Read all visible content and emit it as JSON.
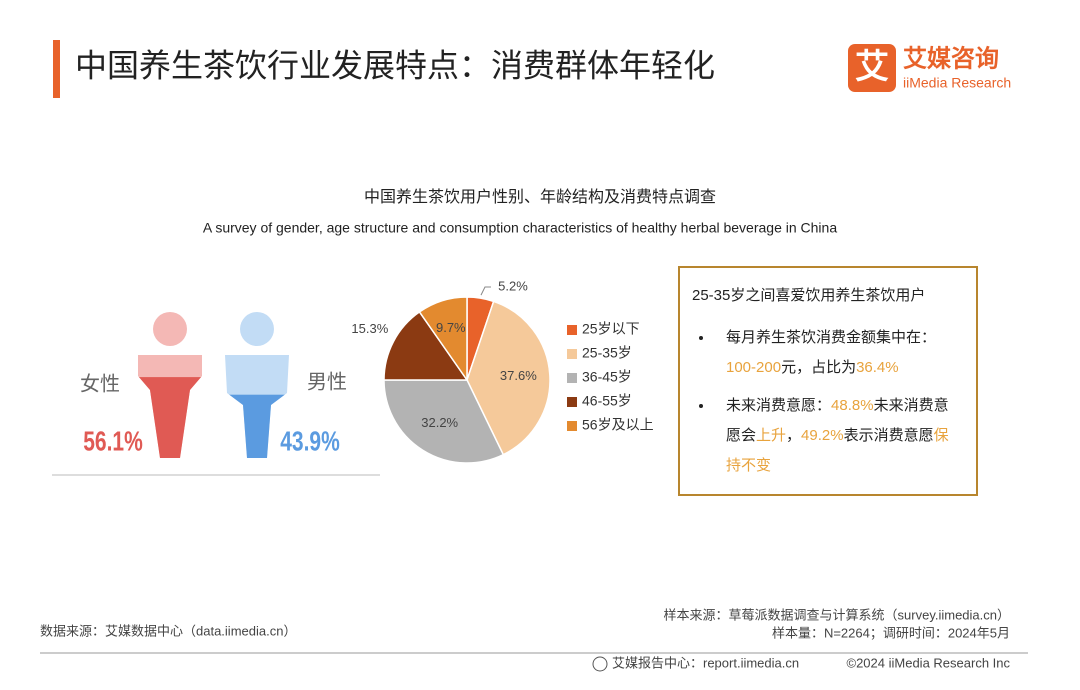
{
  "header": {
    "title": "中国养生茶饮行业发展特点：消费群体年轻化",
    "logo_icon": "艾",
    "logo_name": "艾媒咨询",
    "logo_sub": "iiMedia Research"
  },
  "chart_data": [
    {
      "type": "pictogram",
      "categories": [
        "女性",
        "男性"
      ],
      "values": [
        56.1,
        43.9
      ],
      "value_labels": [
        "56.1%",
        "43.9%"
      ],
      "colors": [
        "#e05a54",
        "#5b9be0"
      ],
      "light_colors": [
        "#f4b8b5",
        "#c2dcf5"
      ]
    },
    {
      "type": "pie",
      "title": "中国养生茶饮用户性别、年龄结构及消费特点调查",
      "subtitle": "A survey of gender, age structure and consumption characteristics of healthy herbal beverage in China",
      "categories": [
        "25岁以下",
        "25-35岁",
        "36-45岁",
        "46-55岁",
        "56岁及以上"
      ],
      "values": [
        5.2,
        37.6,
        32.2,
        15.3,
        9.7
      ],
      "value_labels": [
        "5.2%",
        "37.6%",
        "32.2%",
        "15.3%",
        "9.7%"
      ],
      "colors": [
        "#e8622a",
        "#f5c99a",
        "#b3b3b3",
        "#8b3a12",
        "#e38a2f"
      ]
    }
  ],
  "box": {
    "title": "25-35岁之间喜爱饮用养生茶饮用户",
    "highlight_color": "#e8a33d",
    "items": [
      [
        "每月养生茶饮消费金额集中在：",
        "100-200",
        "元，占比为",
        "36.4%"
      ],
      [
        "未来消费意愿：",
        "48.8%",
        "未来消费意愿会",
        "上升",
        "，",
        "49.2%",
        "表示消费意愿",
        "保持不变"
      ]
    ]
  },
  "footer": {
    "source": "数据来源：艾媒数据中心（data.iimedia.cn）",
    "sample_source": "样本来源：草莓派数据调查与计算系统（survey.iimedia.cn）",
    "sample_info": "样本量：N=2264；调研时间：2024年5月",
    "report_center": "艾媒报告中心：report.iimedia.cn",
    "copyright": "©2024 iiMedia Research Inc"
  }
}
